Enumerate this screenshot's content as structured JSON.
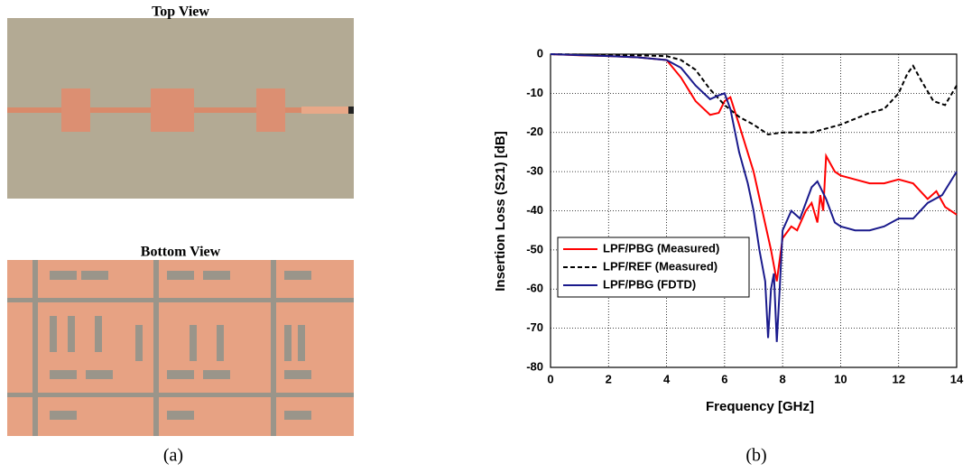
{
  "figure": {
    "top_view_title": "Top View",
    "bottom_view_title": "Bottom View",
    "left_caption": "(a)",
    "right_caption": "(b)"
  },
  "chart_data": {
    "type": "line",
    "xlabel": "Frequency [GHz]",
    "ylabel": "Insertion Loss (S21) [dB]",
    "xlim": [
      0,
      14
    ],
    "ylim": [
      -80,
      0
    ],
    "xticks": [
      0,
      2,
      4,
      6,
      8,
      10,
      12,
      14
    ],
    "yticks": [
      0,
      -10,
      -20,
      -30,
      -40,
      -50,
      -60,
      -70,
      -80
    ],
    "grid": true,
    "legend": "lower-left",
    "series": [
      {
        "name": "LPF/PBG (Measured)",
        "color": "#ff0000",
        "dash": "solid",
        "x": [
          0,
          1,
          2,
          3,
          4,
          4.5,
          5,
          5.5,
          5.8,
          6,
          6.2,
          6.5,
          7,
          7.3,
          7.6,
          7.8,
          8,
          8.3,
          8.5,
          8.8,
          9,
          9.2,
          9.3,
          9.4,
          9.5,
          9.8,
          10,
          10.5,
          11,
          11.5,
          12,
          12.5,
          13,
          13.3,
          13.6,
          14
        ],
        "values": [
          0,
          -0.3,
          -0.5,
          -0.8,
          -1.5,
          -6,
          -12,
          -15.5,
          -15,
          -12,
          -11,
          -18,
          -30,
          -40,
          -50,
          -58,
          -47,
          -44,
          -45,
          -40,
          -38,
          -43,
          -36,
          -40,
          -26,
          -30,
          -31,
          -32,
          -33,
          -33,
          -32,
          -33,
          -37,
          -35,
          -39,
          -41
        ]
      },
      {
        "name": "LPF/REF (Measured)",
        "color": "#000000",
        "dash": "dashed",
        "x": [
          0,
          2,
          3,
          4,
          4.5,
          5,
          5.5,
          6,
          6.5,
          7,
          7.5,
          8,
          9,
          9.5,
          10,
          11,
          11.5,
          12,
          12.3,
          12.5,
          12.8,
          13.2,
          13.6,
          14
        ],
        "values": [
          0,
          -0.2,
          -0.3,
          -0.5,
          -1.5,
          -4,
          -9,
          -13,
          -16,
          -18,
          -20.5,
          -20,
          -20,
          -19,
          -18,
          -15,
          -14,
          -10,
          -5,
          -3,
          -7,
          -12,
          -13,
          -8
        ]
      },
      {
        "name": "LPF/PBG (FDTD)",
        "color": "#1a1a8c",
        "dash": "solid",
        "x": [
          0,
          2,
          3,
          4,
          4.5,
          5,
          5.5,
          5.8,
          6,
          6.2,
          6.5,
          6.8,
          7,
          7.2,
          7.4,
          7.5,
          7.6,
          7.7,
          7.8,
          7.9,
          8,
          8.3,
          8.6,
          9,
          9.2,
          9.5,
          9.8,
          10,
          10.5,
          11,
          11.5,
          12,
          12.5,
          13,
          13.5,
          14
        ],
        "values": [
          0,
          -0.5,
          -0.8,
          -1.5,
          -3.5,
          -8,
          -11.5,
          -10.5,
          -10,
          -14,
          -25,
          -33,
          -40,
          -50,
          -58,
          -72.5,
          -60,
          -56,
          -73.5,
          -60,
          -45,
          -40,
          -42,
          -34,
          -32.5,
          -37,
          -43,
          -44,
          -45,
          -45,
          -44,
          -42,
          -42,
          -38,
          -36,
          -30
        ]
      }
    ]
  }
}
